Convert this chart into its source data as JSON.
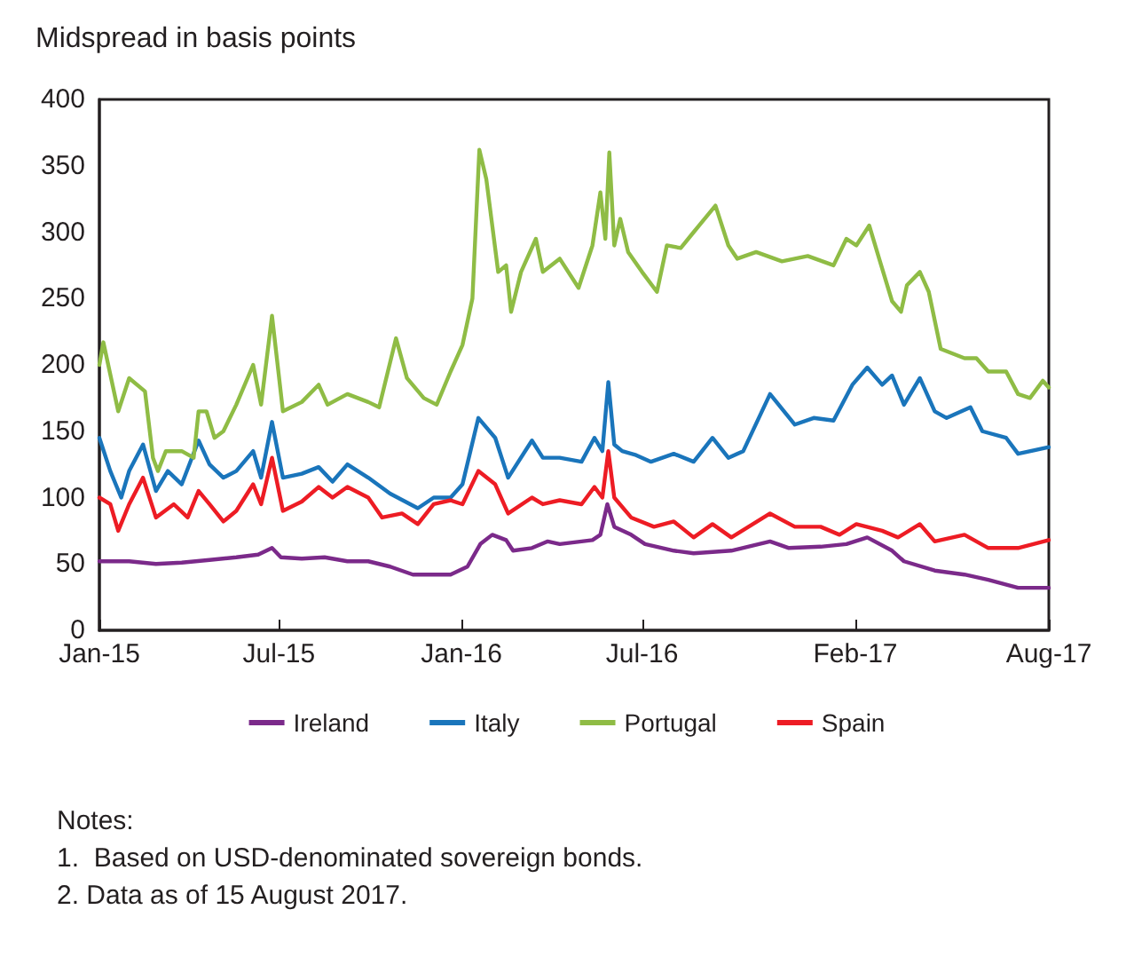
{
  "chart_data": {
    "type": "line",
    "ylabel": "Midspread in basis points",
    "xlim": [
      "2015-01-01",
      "2017-08-15"
    ],
    "xticks": [
      {
        "value": "2015-01-01",
        "label": "Jan-15"
      },
      {
        "value": "2015-07-01",
        "label": "Jul-15"
      },
      {
        "value": "2016-01-01",
        "label": "Jan-16"
      },
      {
        "value": "2016-07-01",
        "label": "Jul-16"
      },
      {
        "value": "2017-02-01",
        "label": "Feb-17"
      },
      {
        "value": "2017-08-15",
        "label": "Aug-17"
      }
    ],
    "ylim": [
      0,
      400
    ],
    "yticks": [
      0,
      50,
      100,
      150,
      200,
      250,
      300,
      350,
      400
    ],
    "grid": false,
    "legend": "bottom",
    "marker": "none",
    "line_style": "solid",
    "annotations": [
      "Notes:",
      "1.  Based on USD-denominated sovereign bonds.",
      "2. Data as of 15 August 2017."
    ],
    "series": [
      {
        "name": "Ireland",
        "color": "#7b2a8a",
        "x": [
          "2015-01-01",
          "2015-01-31",
          "2015-02-27",
          "2015-03-25",
          "2015-04-22",
          "2015-05-19",
          "2015-06-10",
          "2015-06-24",
          "2015-07-03",
          "2015-07-24",
          "2015-08-16",
          "2015-09-08",
          "2015-09-29",
          "2015-10-21",
          "2015-11-13",
          "2015-12-04",
          "2015-12-21",
          "2016-01-07",
          "2016-01-20",
          "2016-02-01",
          "2016-02-15",
          "2016-02-22",
          "2016-03-12",
          "2016-03-28",
          "2016-04-09",
          "2016-05-12",
          "2016-05-20",
          "2016-05-27",
          "2016-06-03",
          "2016-06-20",
          "2016-07-04",
          "2016-08-02",
          "2016-08-22",
          "2016-09-29",
          "2016-11-07",
          "2016-11-26",
          "2016-12-28",
          "2017-01-23",
          "2017-02-13",
          "2017-03-10",
          "2017-03-22",
          "2017-04-22",
          "2017-05-22",
          "2017-06-15",
          "2017-07-15",
          "2017-08-15"
        ],
        "values": [
          52,
          52,
          50,
          51,
          53,
          55,
          57,
          62,
          55,
          54,
          55,
          52,
          52,
          48,
          42,
          42,
          42,
          48,
          65,
          72,
          68,
          60,
          62,
          67,
          65,
          68,
          72,
          95,
          78,
          72,
          65,
          60,
          58,
          60,
          67,
          62,
          63,
          65,
          70,
          60,
          52,
          45,
          42,
          38,
          32,
          32
        ]
      },
      {
        "name": "Italy",
        "color": "#1a75bb",
        "x": [
          "2015-01-01",
          "2015-01-12",
          "2015-01-23",
          "2015-01-31",
          "2015-02-14",
          "2015-02-27",
          "2015-03-11",
          "2015-03-25",
          "2015-04-11",
          "2015-04-22",
          "2015-05-06",
          "2015-05-19",
          "2015-06-05",
          "2015-06-13",
          "2015-06-24",
          "2015-07-05",
          "2015-07-24",
          "2015-08-10",
          "2015-08-24",
          "2015-09-08",
          "2015-09-29",
          "2015-10-21",
          "2015-11-18",
          "2015-12-04",
          "2015-12-21",
          "2016-01-02",
          "2016-01-18",
          "2016-02-04",
          "2016-02-17",
          "2016-03-12",
          "2016-03-23",
          "2016-04-09",
          "2016-05-01",
          "2016-05-14",
          "2016-05-22",
          "2016-05-28",
          "2016-06-03",
          "2016-06-11",
          "2016-06-25",
          "2016-07-10",
          "2016-08-02",
          "2016-08-22",
          "2016-09-10",
          "2016-09-26",
          "2016-10-11",
          "2016-11-07",
          "2016-12-02",
          "2016-12-21",
          "2017-01-10",
          "2017-01-29",
          "2017-02-13",
          "2017-02-28",
          "2017-03-10",
          "2017-03-22",
          "2017-04-07",
          "2017-04-22",
          "2017-05-04",
          "2017-05-28",
          "2017-06-09",
          "2017-07-03",
          "2017-07-15",
          "2017-08-15"
        ],
        "values": [
          145,
          120,
          100,
          120,
          140,
          105,
          120,
          110,
          143,
          125,
          115,
          120,
          135,
          115,
          157,
          115,
          118,
          123,
          112,
          125,
          115,
          103,
          92,
          100,
          100,
          110,
          160,
          145,
          115,
          143,
          130,
          130,
          127,
          145,
          135,
          187,
          140,
          135,
          132,
          127,
          133,
          127,
          145,
          130,
          135,
          178,
          155,
          160,
          158,
          185,
          198,
          185,
          192,
          170,
          190,
          165,
          160,
          168,
          150,
          145,
          133,
          138
        ]
      },
      {
        "name": "Portugal",
        "color": "#8fbc45",
        "x": [
          "2015-01-01",
          "2015-01-05",
          "2015-01-20",
          "2015-01-31",
          "2015-02-16",
          "2015-02-24",
          "2015-03-01",
          "2015-03-09",
          "2015-03-25",
          "2015-04-06",
          "2015-04-11",
          "2015-04-19",
          "2015-04-27",
          "2015-05-06",
          "2015-05-19",
          "2015-06-05",
          "2015-06-13",
          "2015-06-24",
          "2015-07-05",
          "2015-07-24",
          "2015-08-10",
          "2015-08-19",
          "2015-09-08",
          "2015-09-29",
          "2015-10-10",
          "2015-10-27",
          "2015-11-07",
          "2015-11-24",
          "2015-12-07",
          "2015-12-21",
          "2016-01-02",
          "2016-01-12",
          "2016-01-19",
          "2016-01-26",
          "2016-02-07",
          "2016-02-15",
          "2016-02-20",
          "2016-03-01",
          "2016-03-16",
          "2016-03-23",
          "2016-04-09",
          "2016-04-28",
          "2016-05-12",
          "2016-05-20",
          "2016-05-25",
          "2016-05-29",
          "2016-06-03",
          "2016-06-09",
          "2016-06-17",
          "2016-07-01",
          "2016-07-16",
          "2016-07-26",
          "2016-08-09",
          "2016-08-22",
          "2016-09-13",
          "2016-09-26",
          "2016-10-05",
          "2016-10-24",
          "2016-11-19",
          "2016-12-15",
          "2017-01-10",
          "2017-01-23",
          "2017-02-02",
          "2017-02-15",
          "2017-02-25",
          "2017-03-10",
          "2017-03-19",
          "2017-03-25",
          "2017-04-07",
          "2017-04-16",
          "2017-04-28",
          "2017-05-22",
          "2017-06-03",
          "2017-06-15",
          "2017-07-03",
          "2017-07-15",
          "2017-07-27",
          "2017-08-09",
          "2017-08-15"
        ],
        "values": [
          200,
          217,
          165,
          190,
          180,
          130,
          120,
          135,
          135,
          130,
          165,
          165,
          145,
          150,
          170,
          200,
          170,
          237,
          165,
          172,
          185,
          170,
          178,
          172,
          168,
          220,
          190,
          175,
          170,
          195,
          215,
          250,
          362,
          340,
          270,
          275,
          240,
          270,
          295,
          270,
          280,
          258,
          290,
          330,
          295,
          360,
          290,
          310,
          285,
          270,
          255,
          290,
          288,
          300,
          320,
          290,
          280,
          285,
          278,
          282,
          275,
          295,
          290,
          305,
          280,
          248,
          240,
          260,
          270,
          255,
          212,
          205,
          205,
          195,
          195,
          178,
          175,
          188,
          183
        ]
      },
      {
        "name": "Spain",
        "color": "#ed1c24",
        "x": [
          "2015-01-01",
          "2015-01-12",
          "2015-01-20",
          "2015-01-31",
          "2015-02-14",
          "2015-02-27",
          "2015-03-17",
          "2015-03-31",
          "2015-04-11",
          "2015-04-22",
          "2015-05-06",
          "2015-05-19",
          "2015-06-05",
          "2015-06-13",
          "2015-06-24",
          "2015-07-05",
          "2015-07-24",
          "2015-08-10",
          "2015-08-24",
          "2015-09-08",
          "2015-09-29",
          "2015-10-13",
          "2015-11-02",
          "2015-11-18",
          "2015-12-04",
          "2015-12-21",
          "2016-01-02",
          "2016-01-18",
          "2016-02-04",
          "2016-02-17",
          "2016-03-12",
          "2016-03-23",
          "2016-04-09",
          "2016-05-01",
          "2016-05-14",
          "2016-05-22",
          "2016-05-28",
          "2016-06-03",
          "2016-06-20",
          "2016-07-13",
          "2016-08-02",
          "2016-08-22",
          "2016-09-10",
          "2016-09-29",
          "2016-11-07",
          "2016-12-02",
          "2016-12-28",
          "2017-01-16",
          "2017-02-02",
          "2017-02-28",
          "2017-03-16",
          "2017-04-07",
          "2017-04-22",
          "2017-05-22",
          "2017-06-15",
          "2017-07-15",
          "2017-08-15"
        ],
        "values": [
          100,
          95,
          75,
          95,
          115,
          85,
          95,
          85,
          105,
          95,
          82,
          90,
          110,
          95,
          130,
          90,
          97,
          108,
          100,
          108,
          100,
          85,
          88,
          80,
          95,
          98,
          95,
          120,
          110,
          88,
          100,
          95,
          98,
          95,
          108,
          100,
          135,
          100,
          85,
          78,
          82,
          70,
          80,
          70,
          88,
          78,
          78,
          72,
          80,
          75,
          70,
          80,
          67,
          72,
          62,
          62,
          68
        ]
      }
    ]
  }
}
